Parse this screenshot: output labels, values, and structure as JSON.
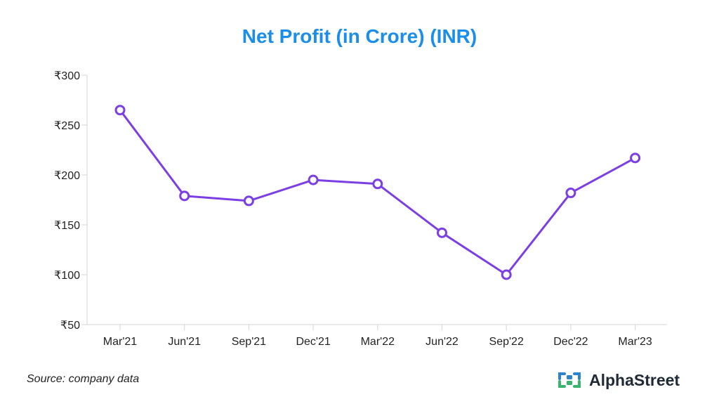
{
  "title": "Net Profit (in Crore) (INR)",
  "source": "Source: company data",
  "brand": {
    "name": "AlphaStreet",
    "icon": "alphastreet-logo-icon",
    "colors": [
      "#2d84cc",
      "#37b56f"
    ]
  },
  "chart_data": {
    "type": "line",
    "title": "Net Profit (in Crore) (INR)",
    "xlabel": "",
    "ylabel": "",
    "categories": [
      "Mar'21",
      "Jun'21",
      "Sep'21",
      "Dec'21",
      "Mar'22",
      "Jun'22",
      "Sep'22",
      "Dec'22",
      "Mar'23"
    ],
    "series": [
      {
        "values": [
          265,
          179,
          174,
          195,
          191,
          142,
          100,
          182,
          217
        ]
      }
    ],
    "ylim": [
      50,
      300
    ],
    "yticks": [
      50,
      100,
      150,
      200,
      250,
      300
    ],
    "ytick_labels": [
      "₹50",
      "₹100",
      "₹150",
      "₹200",
      "₹250",
      "₹300"
    ],
    "grid": false,
    "legend": "none",
    "line_color": "#7b3fe4"
  }
}
